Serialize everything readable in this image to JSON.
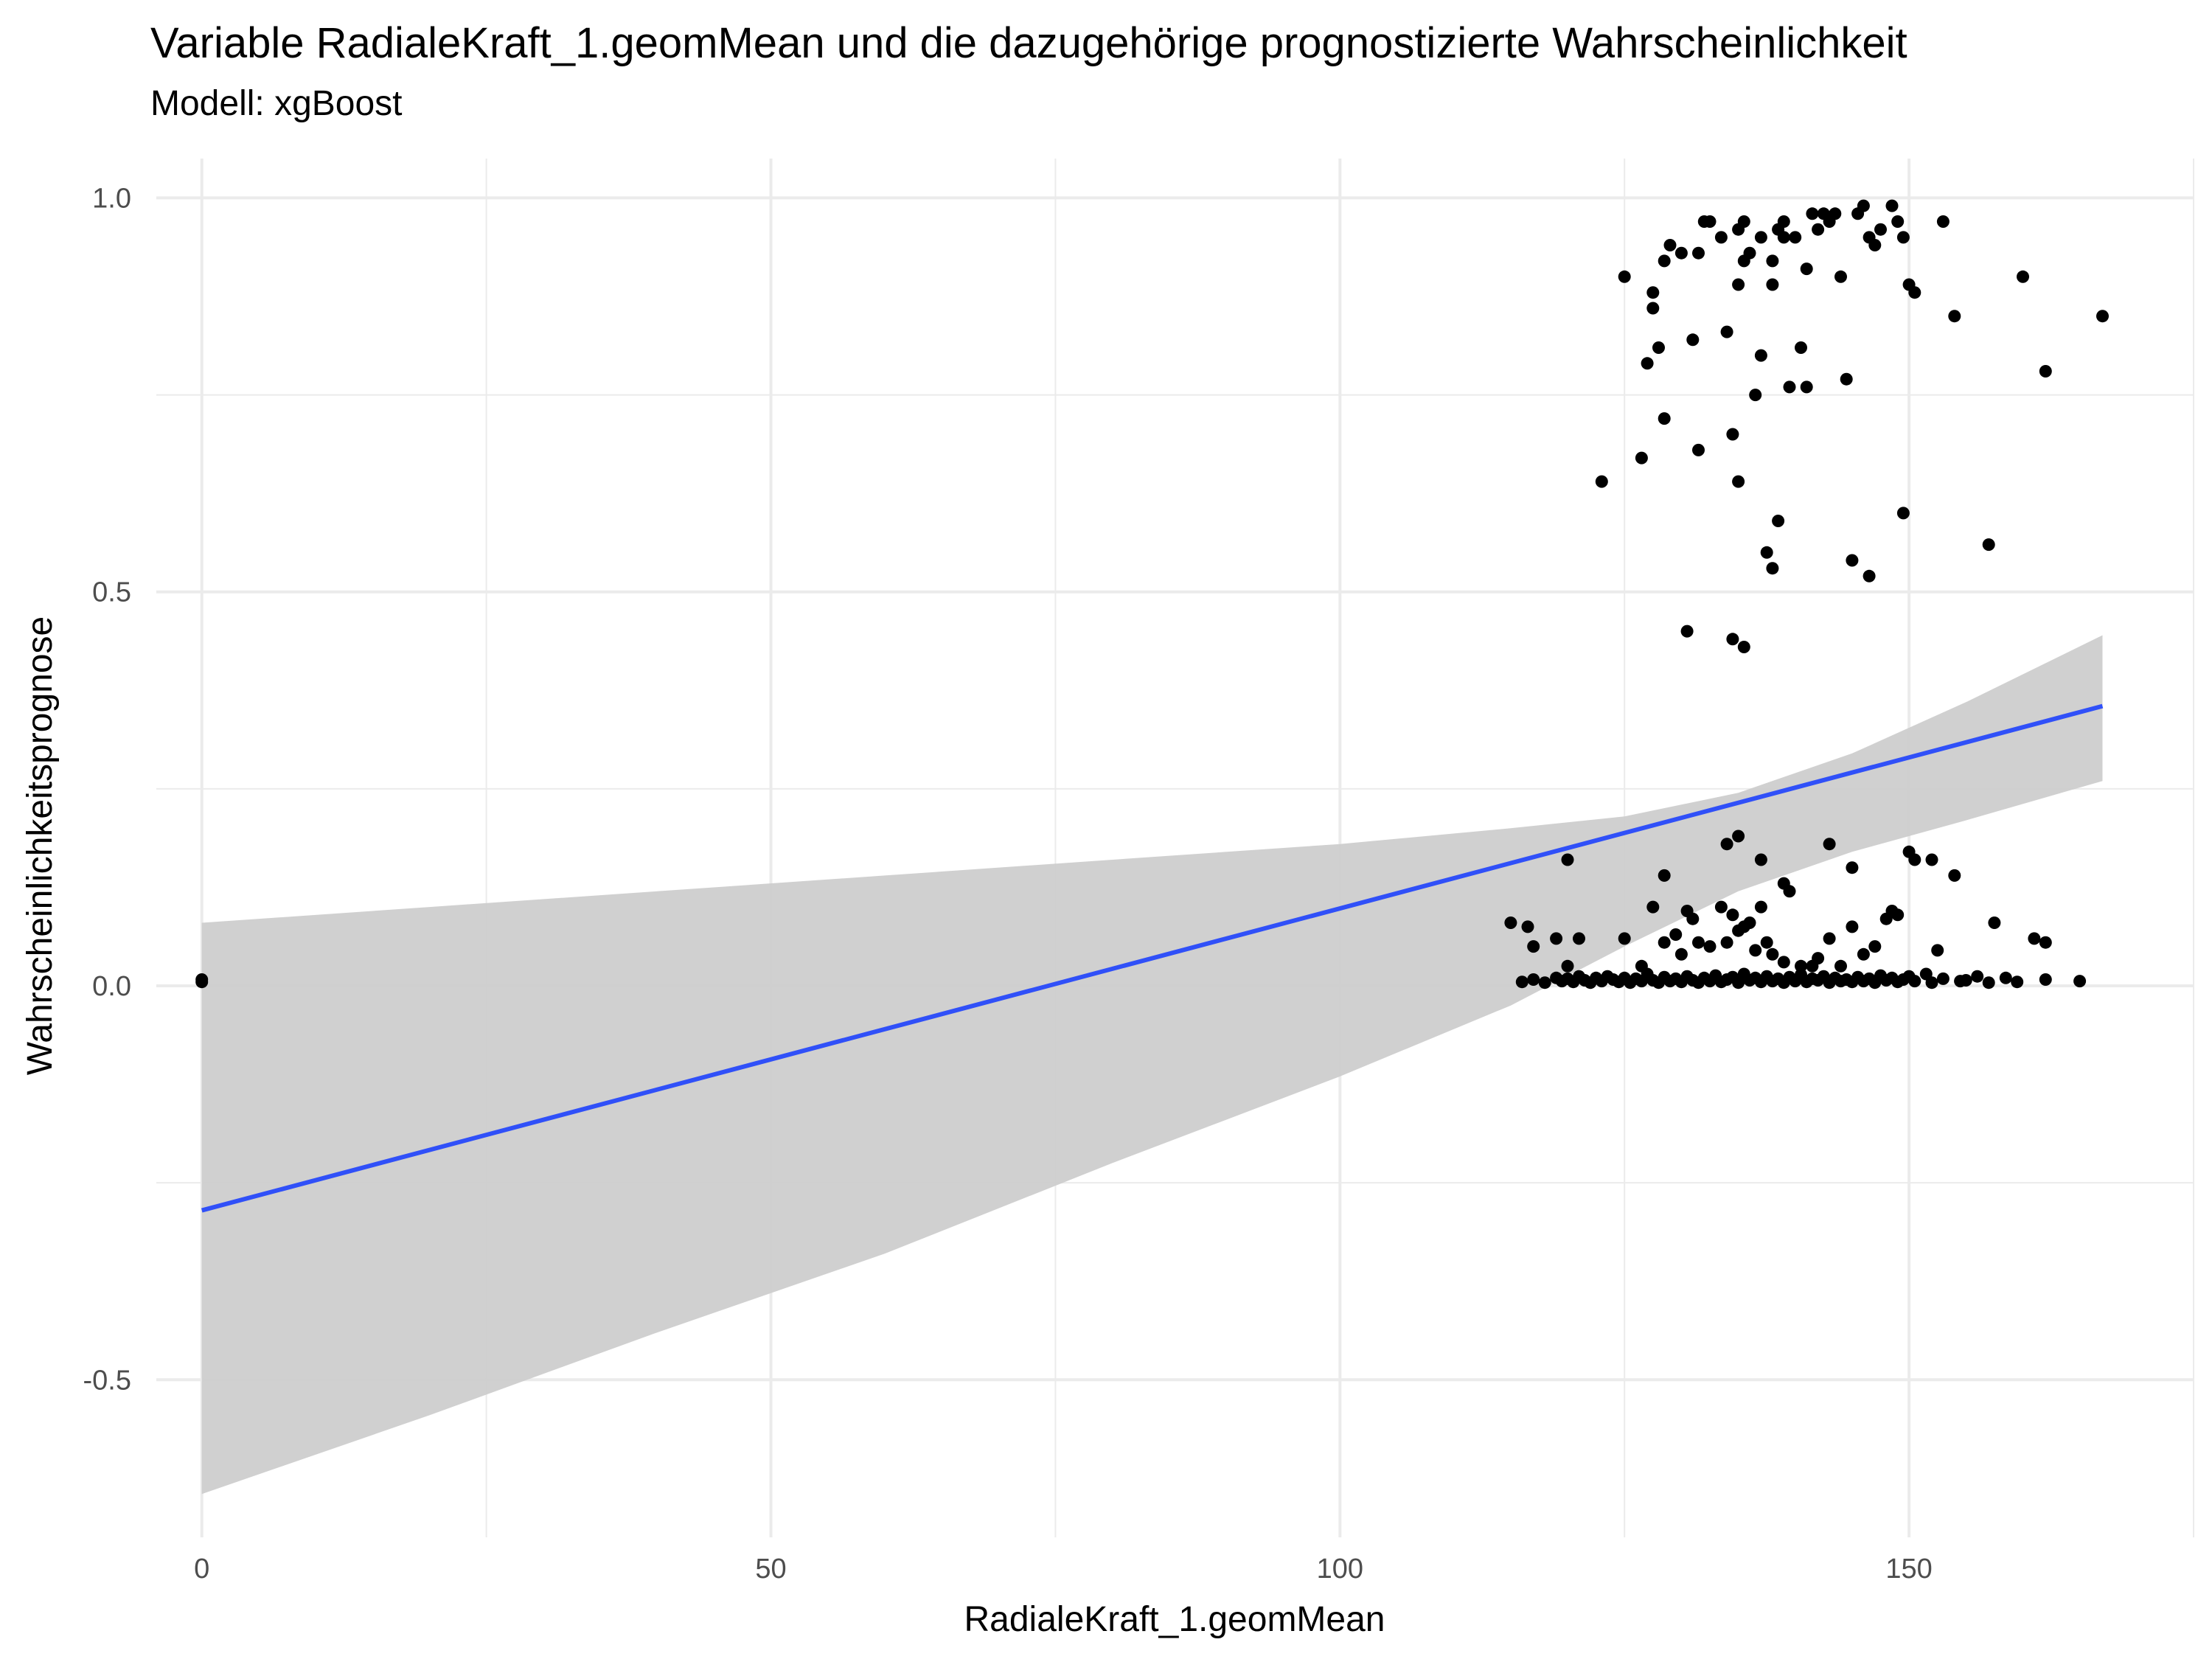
{
  "title": "Variable RadialeKraft_1.geomMean und die dazugehörige prognostizierte Wahrscheinlichkeit",
  "subtitle": "Modell: xgBoost",
  "colors": {
    "points": "#000000",
    "fit_line": "#3050f8",
    "confidence_band": "#cccccc",
    "grid": "#ebebeb",
    "background": "#ffffff"
  },
  "chart_data": {
    "type": "scatter",
    "title": "Variable RadialeKraft_1.geomMean und die dazugehörige prognostizierte Wahrscheinlichkeit",
    "subtitle": "Modell: xgBoost",
    "xlabel": "RadialeKraft_1.geomMean",
    "ylabel": "Wahrscheinlichkeitsprognose",
    "xlim": [
      -4,
      175
    ],
    "ylim": [
      -0.7,
      1.05
    ],
    "xticks": [
      0,
      50,
      100,
      150
    ],
    "xtick_labels": [
      "0",
      "50",
      "100",
      "150"
    ],
    "yticks": [
      -0.5,
      0.0,
      0.5,
      1.0
    ],
    "ytick_labels": [
      "-0.5",
      "0.0",
      "0.5",
      "1.0"
    ],
    "grid": true,
    "legend": "none",
    "smooth": {
      "method": "linear",
      "x": [
        0,
        167
      ],
      "y": [
        -0.285,
        0.355
      ],
      "band_x": [
        0,
        20,
        40,
        60,
        80,
        100,
        115,
        125,
        135,
        145,
        155,
        167
      ],
      "band_lower": [
        -0.645,
        -0.545,
        -0.44,
        -0.34,
        -0.225,
        -0.115,
        -0.025,
        0.05,
        0.12,
        0.17,
        0.21,
        0.26
      ],
      "band_upper": [
        0.08,
        0.1,
        0.12,
        0.14,
        0.16,
        0.18,
        0.2,
        0.215,
        0.245,
        0.295,
        0.36,
        0.445
      ]
    },
    "points": [
      [
        0,
        0.008
      ],
      [
        0,
        0.005
      ],
      [
        123,
        0.64
      ],
      [
        125,
        0.9
      ],
      [
        126.5,
        0.67
      ],
      [
        127,
        0.79
      ],
      [
        127.5,
        0.88
      ],
      [
        127.5,
        0.86
      ],
      [
        128,
        0.81
      ],
      [
        128.5,
        0.72
      ],
      [
        128.5,
        0.92
      ],
      [
        129,
        0.94
      ],
      [
        130,
        0.93
      ],
      [
        130.5,
        0.45
      ],
      [
        131,
        0.82
      ],
      [
        131.5,
        0.68
      ],
      [
        131.5,
        0.93
      ],
      [
        132,
        0.97
      ],
      [
        132.5,
        0.97
      ],
      [
        133.5,
        0.95
      ],
      [
        134,
        0.83
      ],
      [
        134.5,
        0.7
      ],
      [
        134.5,
        0.44
      ],
      [
        135,
        0.96
      ],
      [
        135,
        0.89
      ],
      [
        135,
        0.64
      ],
      [
        135.5,
        0.43
      ],
      [
        135.5,
        0.97
      ],
      [
        135.5,
        0.92
      ],
      [
        136,
        0.93
      ],
      [
        136.5,
        0.75
      ],
      [
        137,
        0.95
      ],
      [
        137,
        0.8
      ],
      [
        137.5,
        0.55
      ],
      [
        138,
        0.92
      ],
      [
        138,
        0.53
      ],
      [
        138,
        0.89
      ],
      [
        138.5,
        0.96
      ],
      [
        138.5,
        0.59
      ],
      [
        139,
        0.95
      ],
      [
        139,
        0.97
      ],
      [
        139.5,
        0.76
      ],
      [
        140,
        0.95
      ],
      [
        140.5,
        0.81
      ],
      [
        141,
        0.91
      ],
      [
        141,
        0.76
      ],
      [
        141.5,
        0.98
      ],
      [
        142,
        0.96
      ],
      [
        142.5,
        0.98
      ],
      [
        143,
        0.97
      ],
      [
        143.5,
        0.98
      ],
      [
        144,
        0.9
      ],
      [
        144.5,
        0.77
      ],
      [
        145,
        0.54
      ],
      [
        145.5,
        0.98
      ],
      [
        146,
        0.99
      ],
      [
        146.5,
        0.95
      ],
      [
        146.5,
        0.52
      ],
      [
        147,
        0.94
      ],
      [
        147.5,
        0.96
      ],
      [
        148.5,
        0.99
      ],
      [
        149,
        0.97
      ],
      [
        149.5,
        0.95
      ],
      [
        150,
        0.89
      ],
      [
        150.5,
        0.88
      ],
      [
        149.5,
        0.6
      ],
      [
        153,
        0.97
      ],
      [
        154,
        0.85
      ],
      [
        157,
        0.56
      ],
      [
        160,
        0.9
      ],
      [
        162,
        0.78
      ],
      [
        167,
        0.85
      ],
      [
        120,
        0.16
      ],
      [
        128.5,
        0.14
      ],
      [
        134,
        0.18
      ],
      [
        135,
        0.19
      ],
      [
        137,
        0.16
      ],
      [
        139,
        0.13
      ],
      [
        139.5,
        0.12
      ],
      [
        143,
        0.18
      ],
      [
        145,
        0.15
      ],
      [
        150,
        0.17
      ],
      [
        150.5,
        0.16
      ],
      [
        152,
        0.16
      ],
      [
        154,
        0.14
      ],
      [
        115,
        0.08
      ],
      [
        116.5,
        0.075
      ],
      [
        117,
        0.05
      ],
      [
        119,
        0.06
      ],
      [
        120,
        0.025
      ],
      [
        121,
        0.06
      ],
      [
        125,
        0.06
      ],
      [
        126.5,
        0.025
      ],
      [
        127.5,
        0.1
      ],
      [
        128.5,
        0.055
      ],
      [
        129.5,
        0.065
      ],
      [
        130,
        0.04
      ],
      [
        130.5,
        0.095
      ],
      [
        131,
        0.085
      ],
      [
        131.5,
        0.055
      ],
      [
        132.5,
        0.05
      ],
      [
        133.5,
        0.1
      ],
      [
        134,
        0.055
      ],
      [
        134.5,
        0.09
      ],
      [
        135,
        0.07
      ],
      [
        135.5,
        0.075
      ],
      [
        136,
        0.08
      ],
      [
        136.5,
        0.045
      ],
      [
        137,
        0.1
      ],
      [
        137.5,
        0.055
      ],
      [
        138,
        0.04
      ],
      [
        139,
        0.03
      ],
      [
        140.5,
        0.025
      ],
      [
        141.5,
        0.025
      ],
      [
        142,
        0.035
      ],
      [
        143,
        0.06
      ],
      [
        144,
        0.025
      ],
      [
        145,
        0.075
      ],
      [
        146,
        0.04
      ],
      [
        147,
        0.05
      ],
      [
        148,
        0.085
      ],
      [
        148.5,
        0.095
      ],
      [
        149,
        0.09
      ],
      [
        152.5,
        0.045
      ],
      [
        157.5,
        0.08
      ],
      [
        161,
        0.06
      ],
      [
        162,
        0.055
      ],
      [
        116,
        0.005
      ],
      [
        117,
        0.008
      ],
      [
        118,
        0.004
      ],
      [
        119,
        0.01
      ],
      [
        119.5,
        0.006
      ],
      [
        120,
        0.009
      ],
      [
        120.5,
        0.005
      ],
      [
        121,
        0.012
      ],
      [
        121.5,
        0.007
      ],
      [
        122,
        0.004
      ],
      [
        122.5,
        0.01
      ],
      [
        123,
        0.006
      ],
      [
        123.5,
        0.012
      ],
      [
        124,
        0.008
      ],
      [
        124.5,
        0.005
      ],
      [
        125,
        0.01
      ],
      [
        125.5,
        0.004
      ],
      [
        126,
        0.009
      ],
      [
        126.5,
        0.006
      ],
      [
        127,
        0.015
      ],
      [
        127.5,
        0.007
      ],
      [
        128,
        0.004
      ],
      [
        128.5,
        0.011
      ],
      [
        129,
        0.006
      ],
      [
        129.5,
        0.009
      ],
      [
        130,
        0.005
      ],
      [
        130.5,
        0.012
      ],
      [
        131,
        0.007
      ],
      [
        131.5,
        0.004
      ],
      [
        132,
        0.01
      ],
      [
        132.5,
        0.006
      ],
      [
        133,
        0.013
      ],
      [
        133.5,
        0.005
      ],
      [
        134,
        0.008
      ],
      [
        134.5,
        0.011
      ],
      [
        135,
        0.004
      ],
      [
        135.5,
        0.015
      ],
      [
        136,
        0.007
      ],
      [
        136.5,
        0.01
      ],
      [
        137,
        0.005
      ],
      [
        137.5,
        0.012
      ],
      [
        138,
        0.006
      ],
      [
        138.5,
        0.009
      ],
      [
        139,
        0.004
      ],
      [
        139.5,
        0.011
      ],
      [
        140,
        0.006
      ],
      [
        140.5,
        0.014
      ],
      [
        141,
        0.005
      ],
      [
        141.5,
        0.009
      ],
      [
        142,
        0.007
      ],
      [
        142.5,
        0.012
      ],
      [
        143,
        0.004
      ],
      [
        143.5,
        0.01
      ],
      [
        144,
        0.006
      ],
      [
        144.5,
        0.008
      ],
      [
        145,
        0.005
      ],
      [
        145.5,
        0.011
      ],
      [
        146,
        0.006
      ],
      [
        146.5,
        0.009
      ],
      [
        147,
        0.004
      ],
      [
        147.5,
        0.013
      ],
      [
        148,
        0.007
      ],
      [
        148.5,
        0.01
      ],
      [
        149,
        0.005
      ],
      [
        149.5,
        0.008
      ],
      [
        150,
        0.012
      ],
      [
        150.5,
        0.006
      ],
      [
        151.5,
        0.015
      ],
      [
        152,
        0.004
      ],
      [
        153,
        0.009
      ],
      [
        154.5,
        0.006
      ],
      [
        155,
        0.007
      ],
      [
        156,
        0.012
      ],
      [
        157,
        0.004
      ],
      [
        158.5,
        0.01
      ],
      [
        159.5,
        0.005
      ],
      [
        162,
        0.008
      ],
      [
        165,
        0.006
      ]
    ]
  }
}
